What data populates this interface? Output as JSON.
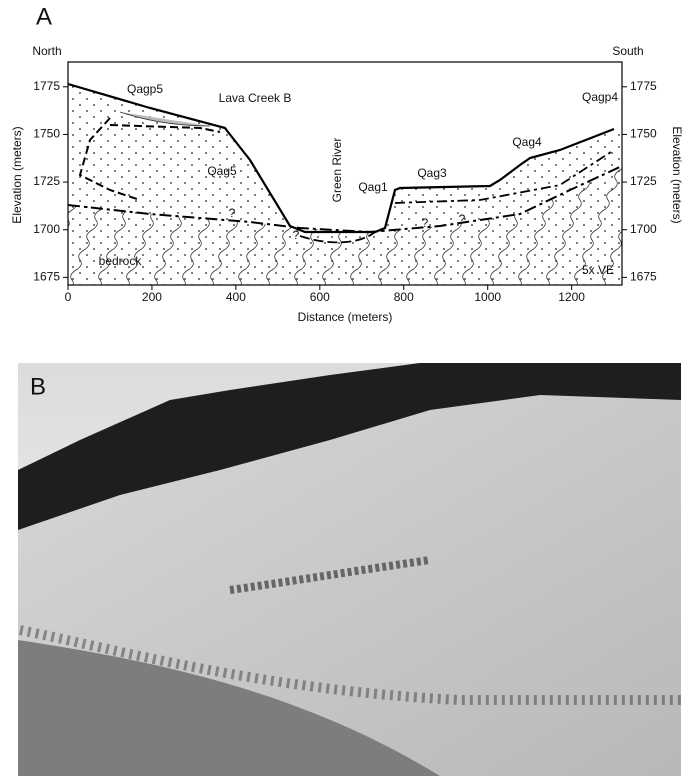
{
  "chart_data": {
    "type": "cross-section",
    "panel": "A",
    "xlabel": "Distance (meters)",
    "ylabel": "Elevation (meters)",
    "y2label": "Elevation (meters)",
    "xlim": [
      0,
      1320
    ],
    "xticks": [
      0,
      200,
      400,
      600,
      800,
      1000,
      1200
    ],
    "ylim": [
      1671,
      1788
    ],
    "yticks": [
      1675,
      1700,
      1725,
      1750,
      1775
    ],
    "y2lim": [
      1671,
      1788
    ],
    "y2ticks": [
      1675,
      1700,
      1725,
      1750,
      1775
    ],
    "annotations": [
      "North",
      "South",
      "Qagp5",
      "Lava Creek B",
      "Green River",
      "Qag5",
      "Qag1",
      "Qag3",
      "Qag4",
      "Qagp4",
      "bedrock",
      "5x VE",
      "?",
      "?",
      "?",
      "?"
    ]
  },
  "photo": {
    "panel": "B"
  }
}
